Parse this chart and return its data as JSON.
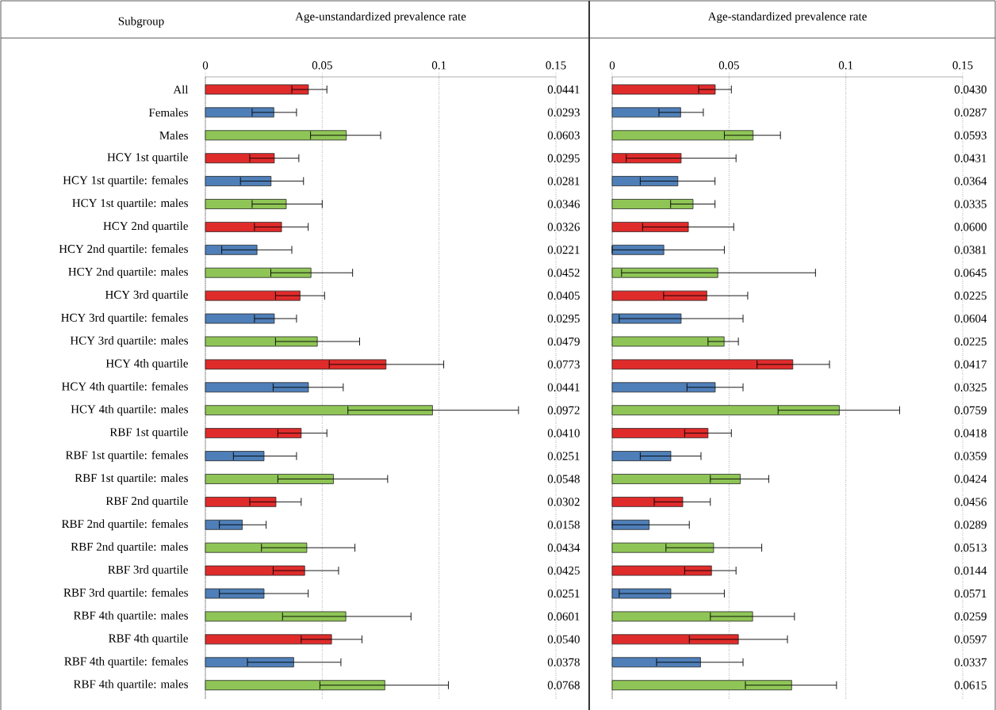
{
  "chart_data": [
    {
      "type": "bar",
      "orientation": "horizontal",
      "title": "Age-unstandardized prevalence rate",
      "ylabel": "Subgroup",
      "categories": [
        "All",
        "Females",
        "Males",
        "HCY 1st quartile",
        "HCY 1st quartile: females",
        "HCY 1st quartile: males",
        "HCY 2nd quartile",
        "HCY 2nd quartile: females",
        "HCY 2nd quartile: males",
        "HCY 3rd quartile",
        "HCY 3rd quartile: females",
        "HCY 3rd quartile: males",
        "HCY 4th quartile",
        "HCY 4th quartile: females",
        "HCY 4th quartile: males",
        "RBF 1st quartile",
        "RBF 1st quartile: females",
        "RBF 1st quartile: males",
        "RBF 2nd quartile",
        "RBF 2nd quartile: females",
        "RBF 2nd quartile: males",
        "RBF 3rd quartile",
        "RBF 3rd quartile: females",
        "RBF 4th quartile: males",
        "RBF 4th quartile",
        "RBF 4th quartile: females",
        "RBF 4th quartile: males"
      ],
      "values": [
        0.0441,
        0.0293,
        0.0603,
        0.0295,
        0.0281,
        0.0346,
        0.0326,
        0.0221,
        0.0452,
        0.0405,
        0.0295,
        0.0479,
        0.0773,
        0.0441,
        0.0972,
        0.041,
        0.0251,
        0.0548,
        0.0302,
        0.0158,
        0.0434,
        0.0425,
        0.0251,
        0.0601,
        0.054,
        0.0378,
        0.0768
      ],
      "colors": [
        "#e02b2b",
        "#4f7fb8",
        "#8fc556",
        "#e02b2b",
        "#4f7fb8",
        "#8fc556",
        "#e02b2b",
        "#4f7fb8",
        "#8fc556",
        "#e02b2b",
        "#4f7fb8",
        "#8fc556",
        "#e02b2b",
        "#4f7fb8",
        "#8fc556",
        "#e02b2b",
        "#4f7fb8",
        "#8fc556",
        "#e02b2b",
        "#4f7fb8",
        "#8fc556",
        "#e02b2b",
        "#4f7fb8",
        "#8fc556",
        "#e02b2b",
        "#4f7fb8",
        "#8fc556"
      ],
      "errors": [
        [
          0.037,
          0.052
        ],
        [
          0.02,
          0.039
        ],
        [
          0.045,
          0.075
        ],
        [
          0.019,
          0.04
        ],
        [
          0.015,
          0.042
        ],
        [
          0.02,
          0.05
        ],
        [
          0.021,
          0.044
        ],
        [
          0.007,
          0.037
        ],
        [
          0.028,
          0.063
        ],
        [
          0.03,
          0.051
        ],
        [
          0.021,
          0.039
        ],
        [
          0.03,
          0.066
        ],
        [
          0.053,
          0.102
        ],
        [
          0.029,
          0.059
        ],
        [
          0.061,
          0.134
        ],
        [
          0.031,
          0.052
        ],
        [
          0.012,
          0.039
        ],
        [
          0.031,
          0.078
        ],
        [
          0.019,
          0.041
        ],
        [
          0.006,
          0.026
        ],
        [
          0.024,
          0.064
        ],
        [
          0.029,
          0.057
        ],
        [
          0.006,
          0.044
        ],
        [
          0.033,
          0.088
        ],
        [
          0.041,
          0.067
        ],
        [
          0.018,
          0.058
        ],
        [
          0.049,
          0.104
        ]
      ],
      "value_labels": [
        "0.0441",
        "0.0293",
        "0.0603",
        "0.0295",
        "0.0281",
        "0.0346",
        "0.0326",
        "0.0221",
        "0.0452",
        "0.0405",
        "0.0295",
        "0.0479",
        "0.0773",
        "0.0441",
        "0.0972",
        "0.0410",
        "0.0251",
        "0.0548",
        "0.0302",
        "0.0158",
        "0.0434",
        "0.0425",
        "0.0251",
        "0.0601",
        "0.0540",
        "0.0378",
        "0.0768"
      ],
      "xlim": [
        0,
        0.15
      ],
      "xticks": [
        0,
        0.05,
        0.1,
        0.15
      ],
      "grid": "x"
    },
    {
      "type": "bar",
      "orientation": "horizontal",
      "title": "Age-standardized prevalence rate",
      "tick_labels": "x",
      "values": [
        0.0441,
        0.0293,
        0.0603,
        0.0295,
        0.0281,
        0.0346,
        0.0326,
        0.0221,
        0.0452,
        0.0405,
        0.0295,
        0.0479,
        0.0773,
        0.0441,
        0.0972,
        0.041,
        0.0251,
        0.0548,
        0.0302,
        0.0158,
        0.0434,
        0.0425,
        0.0251,
        0.0601,
        0.054,
        0.0378,
        0.0768
      ],
      "colors": [
        "#e02b2b",
        "#4f7fb8",
        "#8fc556",
        "#e02b2b",
        "#4f7fb8",
        "#8fc556",
        "#e02b2b",
        "#4f7fb8",
        "#8fc556",
        "#e02b2b",
        "#4f7fb8",
        "#8fc556",
        "#e02b2b",
        "#4f7fb8",
        "#8fc556",
        "#e02b2b",
        "#4f7fb8",
        "#8fc556",
        "#e02b2b",
        "#4f7fb8",
        "#8fc556",
        "#e02b2b",
        "#4f7fb8",
        "#8fc556",
        "#e02b2b",
        "#4f7fb8",
        "#8fc556"
      ],
      "errors": [
        [
          0.037,
          0.051
        ],
        [
          0.02,
          0.039
        ],
        [
          0.048,
          0.072
        ],
        [
          0.006,
          0.053
        ],
        [
          0.012,
          0.044
        ],
        [
          0.025,
          0.044
        ],
        [
          0.013,
          0.052
        ],
        [
          0.0,
          0.048
        ],
        [
          0.004,
          0.087
        ],
        [
          0.022,
          0.058
        ],
        [
          0.003,
          0.056
        ],
        [
          0.041,
          0.054
        ],
        [
          0.062,
          0.093
        ],
        [
          0.032,
          0.056
        ],
        [
          0.071,
          0.123
        ],
        [
          0.031,
          0.051
        ],
        [
          0.012,
          0.038
        ],
        [
          0.042,
          0.067
        ],
        [
          0.018,
          0.042
        ],
        [
          0.0,
          0.033
        ],
        [
          0.023,
          0.064
        ],
        [
          0.031,
          0.053
        ],
        [
          0.003,
          0.048
        ],
        [
          0.042,
          0.078
        ],
        [
          0.033,
          0.075
        ],
        [
          0.019,
          0.056
        ],
        [
          0.057,
          0.096
        ]
      ],
      "annotations": [
        "0.0430",
        "0.0287",
        "0.0593",
        "0.0431",
        "0.0364",
        "0.0335",
        "0.0600",
        "0.0381",
        "0.0645",
        "0.0225",
        "0.0604",
        "0.0225",
        "0.0417",
        "0.0325",
        "0.0759",
        "0.0418",
        "0.0359",
        "0.0424",
        "0.0456",
        "0.0289",
        "0.0513",
        "0.0144",
        "0.0571",
        "0.0259",
        "0.0597",
        "0.0337",
        "0.0615"
      ],
      "xlim": [
        0,
        0.15
      ],
      "xticks": [
        0,
        0.05,
        0.1,
        0.15
      ],
      "grid": "x"
    }
  ]
}
